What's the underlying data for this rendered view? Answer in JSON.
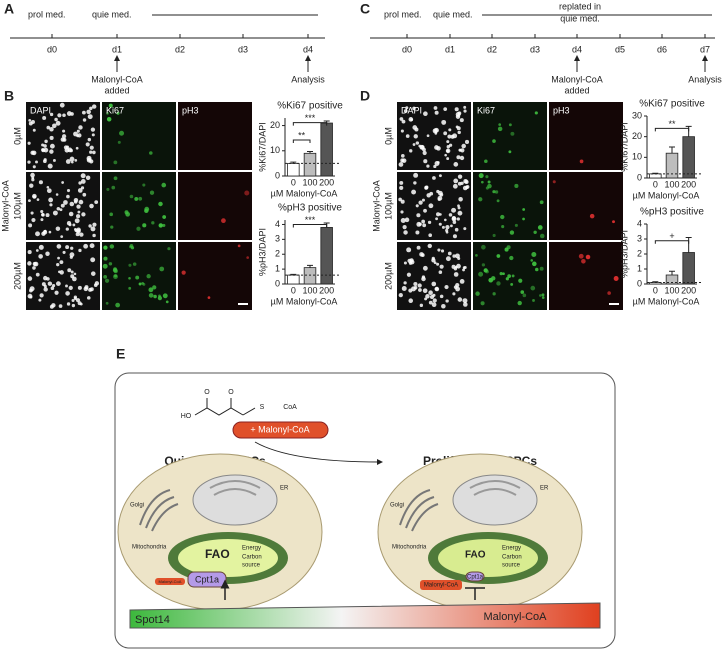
{
  "panel_labels": [
    "A",
    "B",
    "C",
    "D",
    "E"
  ],
  "timeline_a": {
    "media": [
      "prol med.",
      "quie med."
    ],
    "days": [
      "d0",
      "d1",
      "d2",
      "d3",
      "d4"
    ],
    "treatment": [
      "Malonyl-CoA",
      "added"
    ],
    "analysis": "Analysis"
  },
  "timeline_c": {
    "media": [
      "prol med.",
      "quie med."
    ],
    "replated": [
      "replated in",
      "quie med."
    ],
    "days": [
      "d0",
      "d1",
      "d2",
      "d3",
      "d4",
      "d5",
      "d6",
      "d7"
    ],
    "treatment": [
      "Malonyl-CoA",
      "added"
    ],
    "analysis": "Analysis"
  },
  "images_b": {
    "channels": [
      "DAPI",
      "Ki67",
      "pH3"
    ],
    "doses": [
      "0µM",
      "100µM",
      "200µM"
    ],
    "treatment": "Malonyl-CoA"
  },
  "images_d": {
    "channels": [
      "DAPI",
      "Ki67",
      "pH3"
    ],
    "doses": [
      "0µM",
      "100µM",
      "200µM"
    ],
    "treatment": "Malonyl-CoA"
  },
  "chart_data": [
    {
      "type": "bar",
      "title": "%Ki67 positive",
      "y_label": "%Ki67/DAPI",
      "x_label": "µM Malonyl-CoA",
      "categories": [
        "0",
        "100",
        "200"
      ],
      "values": [
        5,
        9,
        21
      ],
      "errors": [
        0.5,
        0.7,
        0.8
      ],
      "colors": [
        "#ffffff",
        "#bdbdbd",
        "#555555"
      ],
      "ylim": [
        0,
        23
      ],
      "yticks": [
        0,
        10,
        20
      ],
      "annotations": [
        "**",
        "***"
      ]
    },
    {
      "type": "bar",
      "title": "%pH3 positive",
      "y_label": "%pH3/DAPI",
      "x_label": "µM Malonyl-CoA",
      "categories": [
        "0",
        "100",
        "200"
      ],
      "values": [
        0.6,
        1.1,
        3.8
      ],
      "errors": [
        0.05,
        0.15,
        0.3
      ],
      "colors": [
        "#ffffff",
        "#bdbdbd",
        "#555555"
      ],
      "ylim": [
        0,
        4.3
      ],
      "yticks": [
        0,
        1,
        2,
        3,
        4
      ],
      "annotations": [
        "***"
      ]
    },
    {
      "type": "bar",
      "title": "%Ki67 positive",
      "y_label": "%Ki67/DAPI",
      "x_label": "µM Malonyl-CoA",
      "categories": [
        "0",
        "100",
        "200"
      ],
      "values": [
        2,
        12,
        20
      ],
      "errors": [
        0.3,
        3,
        5
      ],
      "colors": [
        "#ffffff",
        "#bdbdbd",
        "#555555"
      ],
      "ylim": [
        0,
        30
      ],
      "yticks": [
        0,
        10,
        20,
        30
      ],
      "annotations": [
        "**"
      ]
    },
    {
      "type": "bar",
      "title": "%pH3 positive",
      "y_label": "%pH3/DAPI",
      "x_label": "µM Malonyl-CoA",
      "categories": [
        "0",
        "100",
        "200"
      ],
      "values": [
        0.1,
        0.6,
        2.1
      ],
      "errors": [
        0.05,
        0.25,
        1
      ],
      "colors": [
        "#ffffff",
        "#bdbdbd",
        "#555555"
      ],
      "ylim": [
        0,
        4
      ],
      "yticks": [
        0,
        1,
        2,
        3,
        4
      ],
      "annotations": [
        "+"
      ]
    }
  ],
  "diagram_e": {
    "structure": [
      "HO",
      "O",
      "O",
      "S",
      "CoA"
    ],
    "added": "+ Malonyl-CoA",
    "states": [
      "Quiescent NSPCs",
      "Proliferating NSPCs"
    ],
    "cells": [
      {
        "golgi": "Golgi",
        "er": "ER",
        "mito": "Mitochondria",
        "fao": "FAO",
        "energy": "Energy",
        "carbon": [
          "Carbon",
          "source"
        ],
        "enzyme": "Cpt1a",
        "inhibitor": "Malonyl-CoA"
      },
      {
        "golgi": "Golgi",
        "er": "ER",
        "mito": "Mitochondria",
        "fao": "FAO",
        "energy": "Energy",
        "carbon": [
          "Carbon",
          "source"
        ],
        "enzyme": "Cpt1a",
        "inhibitor": "Malonyl-CoA"
      }
    ],
    "gradient": [
      "Spot14",
      "Malonyl-CoA"
    ]
  }
}
